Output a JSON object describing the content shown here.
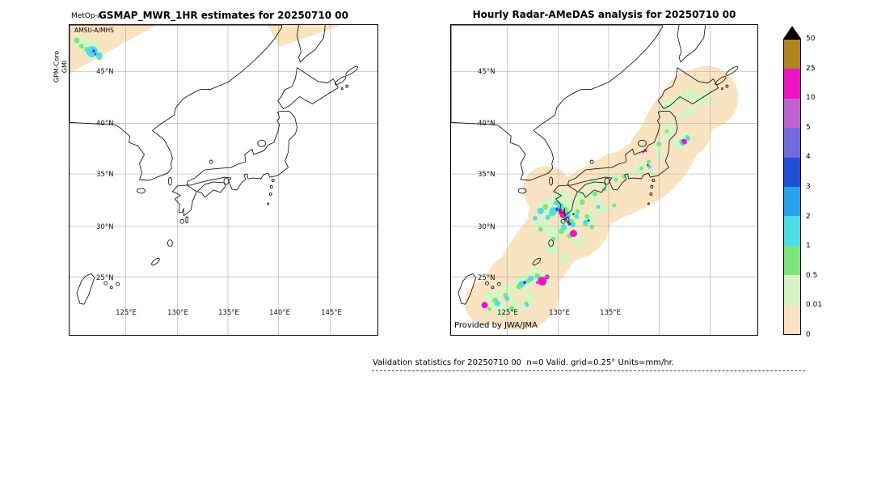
{
  "left_panel": {
    "satellite": "MetOp-A",
    "title": "GSMAP_MWR_1HR estimates for 20250710 00",
    "sensor_tag": "AMSU-A/MHS",
    "side_label_line1": "GPM-Core",
    "side_label_line2": "GMI"
  },
  "right_panel": {
    "title": "Hourly Radar-AMeDAS analysis for 20250710 00",
    "credit": "Provided by JWA/JMA"
  },
  "axes": {
    "lat_labels": [
      "45°N",
      "40°N",
      "35°N",
      "30°N",
      "25°N"
    ],
    "lon_labels": [
      "125°E",
      "130°E",
      "135°E",
      "140°E",
      "145°E"
    ]
  },
  "colorbar": {
    "units": "mm/hr",
    "labels_top_to_bottom": [
      "50",
      "25",
      "10",
      "5",
      "4",
      "3",
      "2",
      "1",
      "0.5",
      "0.01",
      "0"
    ],
    "segments_top_to_bottom": [
      "#b08420",
      "#ef14c1",
      "#bf62ce",
      "#756add",
      "#1f51d6",
      "#28a2ea",
      "#4cdde4",
      "#7de67d",
      "#d6f4c4",
      "#fae3c0"
    ],
    "overflow_marker": "black-triangle",
    "no_rain_coverage_color": "#fae3c0",
    "grid_color": "#b3b3b3"
  },
  "footer": {
    "text": "Validation statistics for 20250710 00  n=0 Valid. grid=0.25° Units=mm/hr."
  },
  "chart_data": [
    {
      "type": "heatmap",
      "panel": "left",
      "title": "GSMAP_MWR_1HR estimates for 20250710 00",
      "satellite": "MetOp-A",
      "sensor": "AMSU-A/MHS",
      "side_label": "GPM-Core GMI",
      "x_ticks": [
        "125°E",
        "130°E",
        "135°E",
        "140°E",
        "145°E"
      ],
      "y_ticks": [
        "45°N",
        "40°N",
        "35°N",
        "30°N",
        "25°N"
      ],
      "lon_range_deg_e": [
        120,
        150
      ],
      "lat_range_deg_n": [
        20,
        49.5
      ],
      "units": "mm/hr",
      "scale_levels": [
        0,
        0.01,
        0.5,
        1,
        2,
        3,
        4,
        5,
        10,
        25,
        50
      ],
      "grid": true,
      "legend_position": "right-shared-colorbar",
      "coverage_summary": "Two narrow satellite swaths (no-rain tan shading): one over the north-west corner near Korea/Primorye with embedded light-to-moderate rain cells (≈0.01–3 mm/hr, small cyan/green blobs near 45°N 122–124°E), and one slanted swath at the top near Sakhalin with no rain."
    },
    {
      "type": "heatmap",
      "panel": "right",
      "title": "Hourly Radar-AMeDAS analysis for 20250710 00",
      "credit": "Provided by JWA/JMA",
      "x_ticks": [
        "125°E",
        "130°E",
        "135°E"
      ],
      "y_ticks": [
        "45°N",
        "40°N",
        "35°N",
        "30°N",
        "25°N"
      ],
      "lon_range_deg_e": [
        120,
        150
      ],
      "lat_range_deg_n": [
        20,
        49.5
      ],
      "units": "mm/hr",
      "scale_levels": [
        0,
        0.01,
        0.5,
        1,
        2,
        3,
        4,
        5,
        10,
        25,
        50
      ],
      "grid": true,
      "legend_position": "right-shared-colorbar",
      "coverage_summary": "Radar composite covering the whole Japanese archipelago (tan no-rain shading). Widespread light rain (0.01–1 mm/hr, pale green) over Kyushu, Shikoku, western Honshu, Tohoku and Hokkaido; moderate cells (1–5 mm/hr, cyan/blue) around north-west Kyushu and the Nansei islands; heavy cells (10–25 mm/hr, magenta) near Kyushu ~32°N 130.5°E, Amami ~28°N 129°E, the far south-west ~24.5°N 123.5°E and off the Sanriku coast ~38.5°N 142.5°E."
    }
  ]
}
